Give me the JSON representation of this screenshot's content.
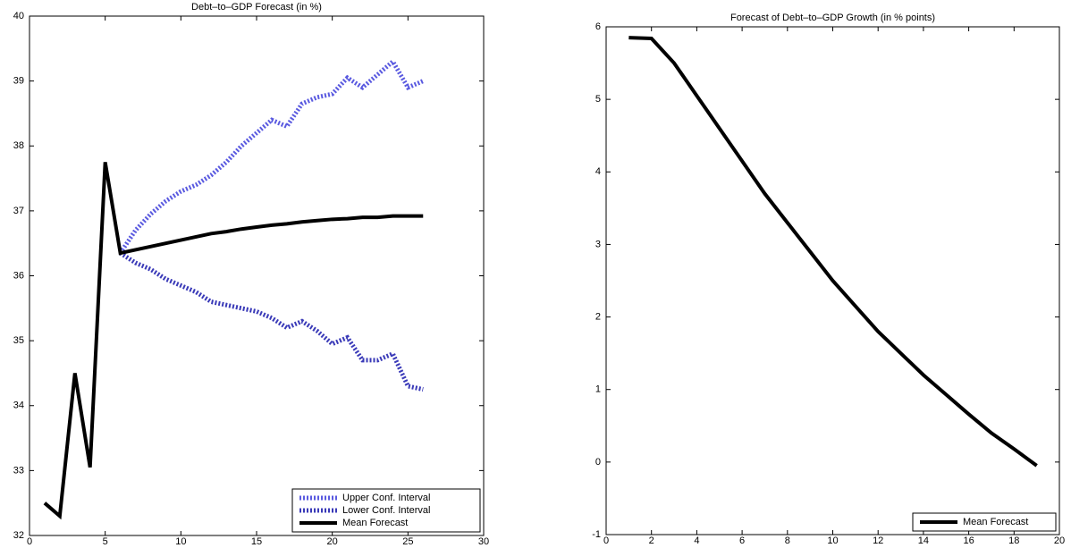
{
  "chart_data": [
    {
      "type": "line",
      "title": "Debt–to–GDP Forecast (in %)",
      "x": [
        1,
        2,
        3,
        4,
        5,
        6,
        7,
        8,
        9,
        10,
        11,
        12,
        13,
        14,
        15,
        16,
        17,
        18,
        19,
        20,
        21,
        22,
        23,
        24,
        25,
        26
      ],
      "series": [
        {
          "name": "Upper Conf. Interval",
          "color": "#5a5ae0",
          "linestyle": "dotted",
          "values": [
            null,
            null,
            null,
            null,
            null,
            36.35,
            36.7,
            36.95,
            37.15,
            37.3,
            37.4,
            37.55,
            37.75,
            38.0,
            38.2,
            38.4,
            38.3,
            38.65,
            38.75,
            38.8,
            39.05,
            38.9,
            39.1,
            39.3,
            38.9,
            39.0
          ]
        },
        {
          "name": "Lower Conf. Interval",
          "color": "#3a3ab8",
          "linestyle": "dotted",
          "values": [
            null,
            null,
            null,
            null,
            null,
            36.35,
            36.2,
            36.1,
            35.95,
            35.85,
            35.75,
            35.6,
            35.55,
            35.5,
            35.45,
            35.35,
            35.2,
            35.3,
            35.15,
            34.95,
            35.05,
            34.7,
            34.7,
            34.8,
            34.3,
            34.25
          ]
        },
        {
          "name": "Mean Forecast",
          "color": "#000000",
          "linestyle": "solid",
          "values": [
            32.5,
            32.3,
            34.5,
            33.05,
            37.75,
            36.35,
            36.4,
            36.45,
            36.5,
            36.55,
            36.6,
            36.65,
            36.68,
            36.72,
            36.75,
            36.78,
            36.8,
            36.83,
            36.85,
            36.87,
            36.88,
            36.9,
            36.9,
            36.92,
            36.92,
            36.92
          ]
        }
      ],
      "xlim": [
        0,
        30
      ],
      "xticks": [
        0,
        5,
        10,
        15,
        20,
        25,
        30
      ],
      "ylim": [
        32,
        40
      ],
      "yticks": [
        32,
        33,
        34,
        35,
        36,
        37,
        38,
        39,
        40
      ],
      "legend": "lower right"
    },
    {
      "type": "line",
      "title": "Forecast of Debt–to–GDP Growth (in % points)",
      "x": [
        1,
        2,
        3,
        4,
        5,
        6,
        7,
        8,
        9,
        10,
        11,
        12,
        13,
        14,
        15,
        16,
        17,
        18,
        19
      ],
      "series": [
        {
          "name": "Mean Forecast",
          "color": "#000000",
          "linestyle": "solid",
          "values": [
            5.85,
            5.84,
            5.5,
            5.05,
            4.6,
            4.15,
            3.7,
            3.3,
            2.9,
            2.5,
            2.15,
            1.8,
            1.5,
            1.2,
            0.93,
            0.66,
            0.4,
            0.18,
            -0.05
          ]
        }
      ],
      "xlim": [
        0,
        20
      ],
      "xticks": [
        0,
        2,
        4,
        6,
        8,
        10,
        12,
        14,
        16,
        18,
        20
      ],
      "ylim": [
        -1,
        6
      ],
      "yticks": [
        -1,
        0,
        1,
        2,
        3,
        4,
        5,
        6
      ],
      "legend": "lower right"
    }
  ]
}
